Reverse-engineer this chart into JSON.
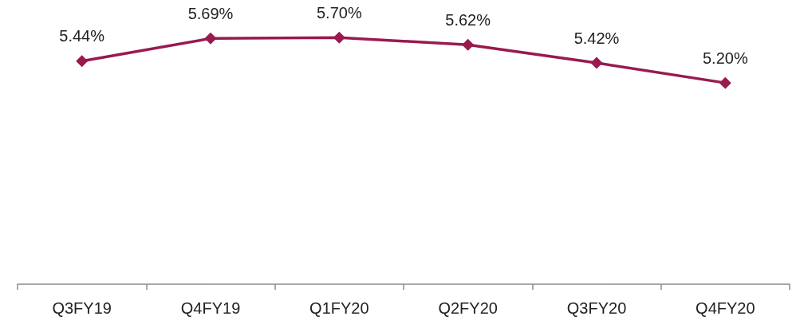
{
  "chart_data": {
    "type": "line",
    "categories": [
      "Q3FY19",
      "Q4FY19",
      "Q1FY20",
      "Q2FY20",
      "Q3FY20",
      "Q4FY20"
    ],
    "values": [
      5.44,
      5.69,
      5.7,
      5.62,
      5.42,
      5.2
    ],
    "value_labels": [
      "5.44%",
      "5.69%",
      "5.70%",
      "5.62%",
      "5.42%",
      "5.20%"
    ],
    "color": "#991a4e",
    "marker": "diamond",
    "line_style": "solid",
    "tick_labels": "x"
  }
}
